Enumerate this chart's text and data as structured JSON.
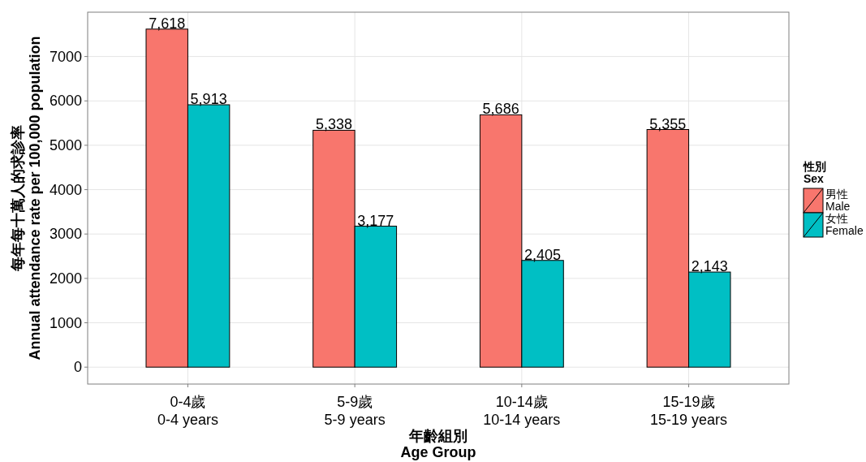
{
  "chart_data": {
    "type": "bar",
    "xlabel": "年齡組別\nAge Group",
    "ylabel": "每年每十萬人的求診率\nAnnual attendance rate per 100,000 population",
    "legend_title": "性別\nSex",
    "categories": [
      "0-4歲\n0-4 years",
      "5-9歲\n5-9 years",
      "10-14歲\n10-14 years",
      "15-19歲\n15-19 years"
    ],
    "series": [
      {
        "name": "男性\nMale",
        "color": "#f8766d",
        "values": [
          7618,
          5338,
          5686,
          5355
        ],
        "value_labels": [
          "7,618",
          "5,338",
          "5,686",
          "5,355"
        ]
      },
      {
        "name": "女性\nFemale",
        "color": "#00bfc4",
        "values": [
          5913,
          3177,
          2405,
          2143
        ],
        "value_labels": [
          "5,913",
          "3,177",
          "2,405",
          "2,143"
        ]
      }
    ],
    "ylim": [
      -381,
      7999
    ],
    "yticks": [
      0,
      1000,
      2000,
      3000,
      4000,
      5000,
      6000,
      7000
    ],
    "grid": true,
    "legend": "right"
  }
}
